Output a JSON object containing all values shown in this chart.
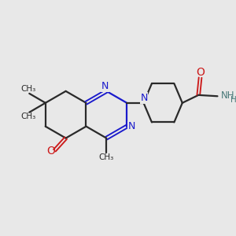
{
  "bg_color": "#e8e8e8",
  "bond_color": "#2a2a2a",
  "nitrogen_color": "#1a1acc",
  "oxygen_color": "#cc1a1a",
  "nh2_color": "#4a7a7a",
  "figsize": [
    3.0,
    3.0
  ],
  "dpi": 100,
  "xlim": [
    0,
    10
  ],
  "ylim": [
    0,
    10
  ]
}
